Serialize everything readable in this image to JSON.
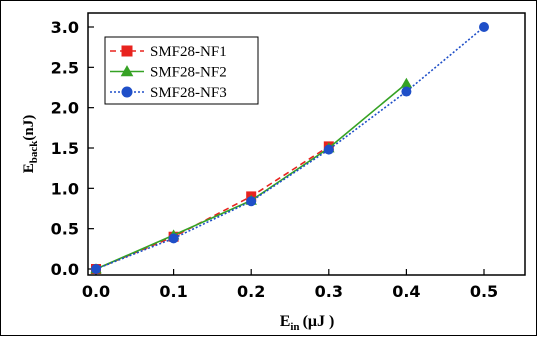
{
  "chart_data": {
    "type": "line",
    "xlabel": {
      "main": "E",
      "sub": "in",
      "unit": "(μJ )"
    },
    "ylabel": {
      "main": "E",
      "sub": "back",
      "unit": "(nJ)"
    },
    "xlim": [
      0,
      0.5
    ],
    "ylim": [
      0,
      3.0
    ],
    "xticks": [
      0.0,
      0.1,
      0.2,
      0.3,
      0.4,
      0.5
    ],
    "xtick_labels": [
      "0.0",
      "0.1",
      "0.2",
      "0.3",
      "0.4",
      "0.5"
    ],
    "yticks": [
      0.0,
      0.5,
      1.0,
      1.5,
      2.0,
      2.5,
      3.0
    ],
    "ytick_labels": [
      "0.0",
      "0.5",
      "1.0",
      "1.5",
      "2.0",
      "2.5",
      "3.0"
    ],
    "grid": false,
    "legend_placement": "top-left",
    "series": [
      {
        "name": "SMF28-NF1",
        "color": "#e8231e",
        "marker": "square",
        "line_style": "dashed",
        "x": [
          0.0,
          0.1,
          0.2,
          0.3
        ],
        "y": [
          0.0,
          0.4,
          0.9,
          1.52
        ]
      },
      {
        "name": "SMF28-NF2",
        "color": "#35a224",
        "marker": "triangle",
        "line_style": "solid",
        "x": [
          0.0,
          0.1,
          0.2,
          0.3,
          0.4
        ],
        "y": [
          0.0,
          0.42,
          0.85,
          1.5,
          2.3
        ]
      },
      {
        "name": "SMF28-NF3",
        "color": "#1f4fc8",
        "marker": "circle",
        "line_style": "dotted",
        "x": [
          0.0,
          0.1,
          0.2,
          0.3,
          0.4,
          0.5
        ],
        "y": [
          0.0,
          0.38,
          0.84,
          1.48,
          2.2,
          3.0
        ]
      }
    ]
  }
}
